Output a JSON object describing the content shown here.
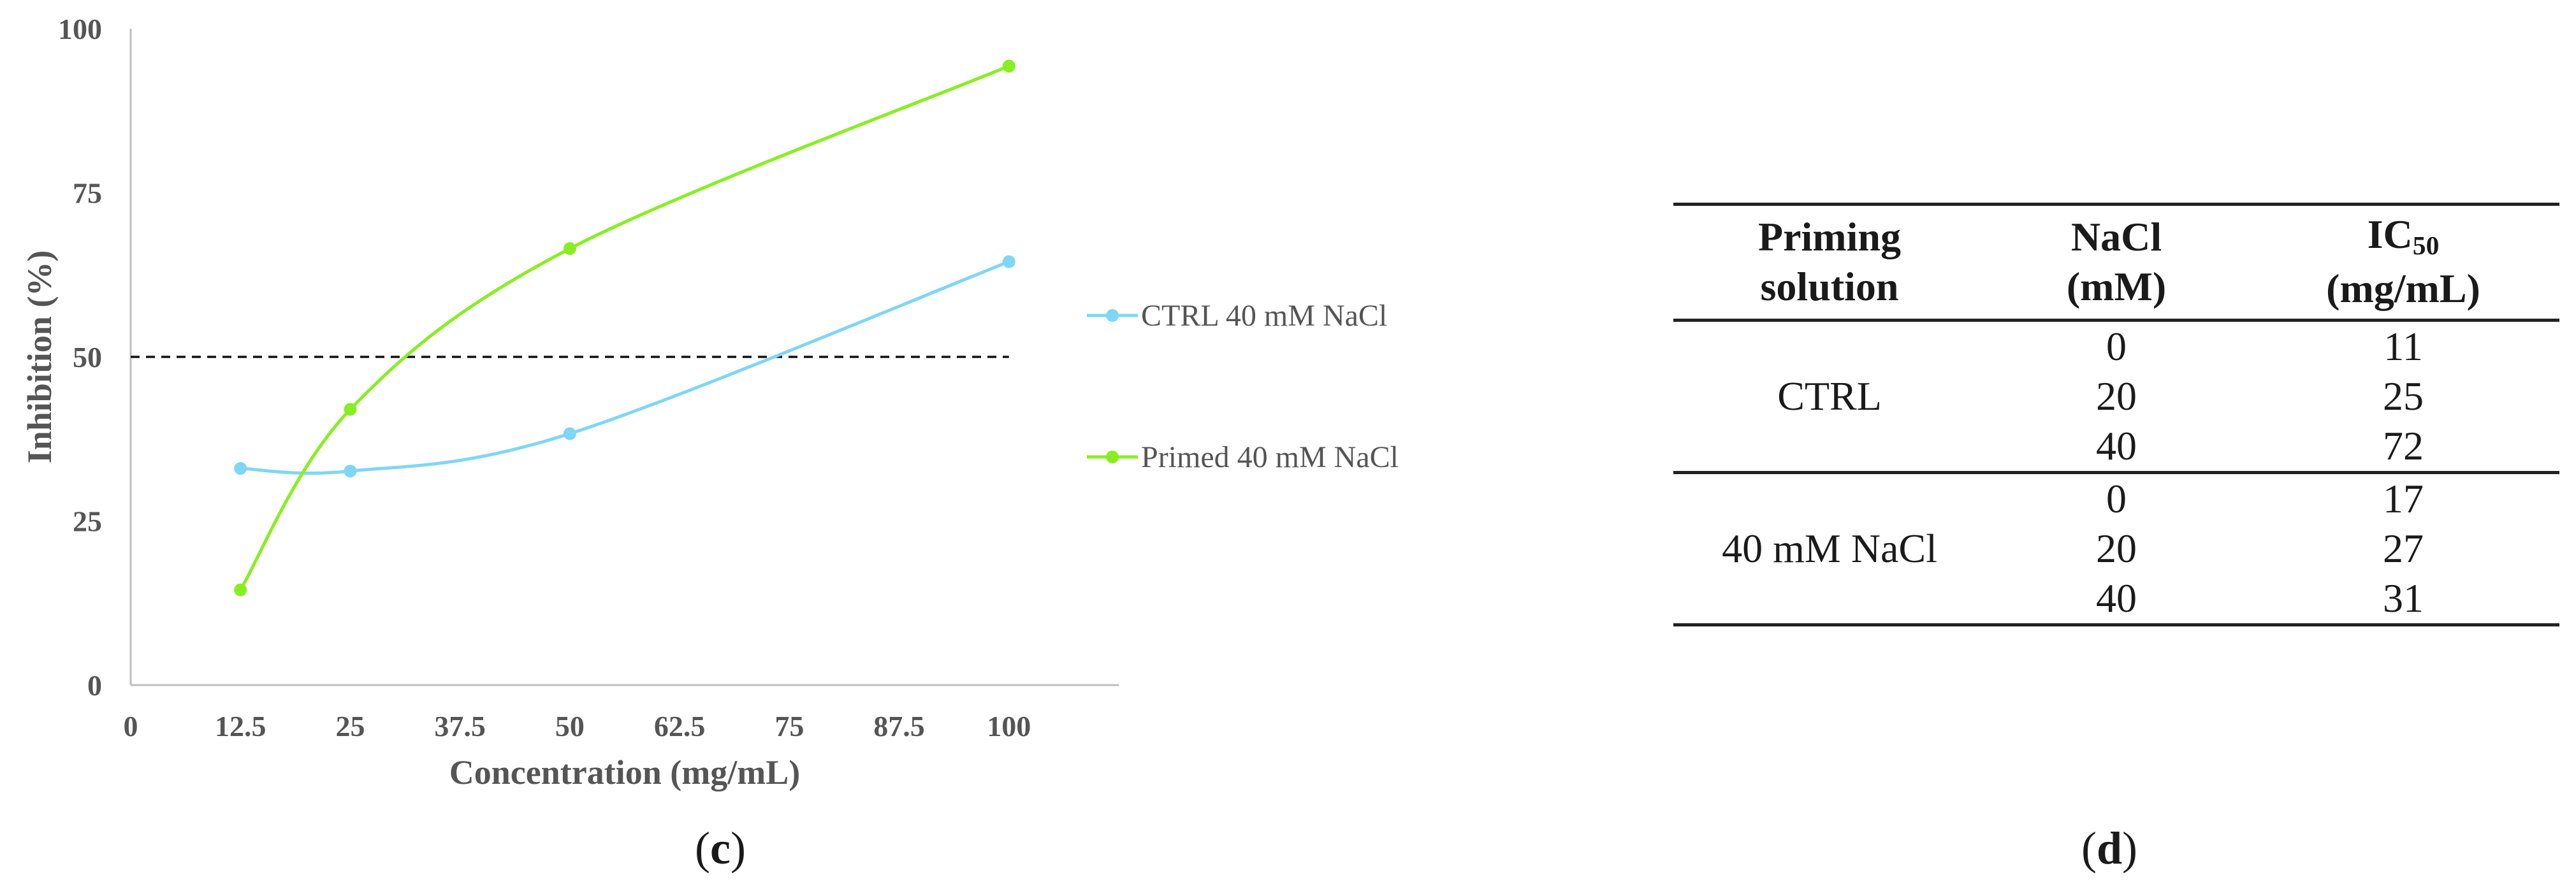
{
  "chart_data": [
    {
      "type": "line",
      "panel": "(c)",
      "xlabel": "Concentration (mg/mL)",
      "ylabel": "Inhibition (%)",
      "xlim": [
        0,
        112.5
      ],
      "ylim": [
        0,
        100
      ],
      "x_ticks": [
        0,
        12.5,
        25,
        37.5,
        50,
        62.5,
        75,
        87.5,
        100
      ],
      "x_tick_labels": [
        "0",
        "12.5",
        "25",
        "37.5",
        "50",
        "62.5",
        "75",
        "87.5",
        "100"
      ],
      "y_ticks": [
        0,
        25,
        50,
        75,
        100
      ],
      "y_tick_labels": [
        "0",
        "25",
        "50",
        "75",
        "100"
      ],
      "grid": false,
      "legend_position": "right",
      "reference_line": {
        "y": 50,
        "style": "dashed",
        "x_range": [
          0,
          100
        ]
      },
      "series": [
        {
          "name": "CTRL 40 mM NaCl",
          "color": "#7fd6f5",
          "x": [
            12.5,
            25,
            50,
            100
          ],
          "y": [
            33,
            32.6,
            38.3,
            64.5
          ]
        },
        {
          "name": "Primed 40 mM NaCl",
          "color": "#88ee22",
          "x": [
            12.5,
            25,
            50,
            100
          ],
          "y": [
            14.5,
            42,
            66.5,
            94.3
          ]
        }
      ]
    },
    {
      "type": "table",
      "panel": "(d)",
      "columns": [
        "Priming solution",
        "NaCl (mM)",
        "IC50 (mg/mL)"
      ],
      "groups": [
        {
          "name": "CTRL",
          "rows": [
            {
              "nacl": "0",
              "ic50": "11"
            },
            {
              "nacl": "20",
              "ic50": "25"
            },
            {
              "nacl": "40",
              "ic50": "72"
            }
          ]
        },
        {
          "name": "40 mM NaCl",
          "rows": [
            {
              "nacl": "0",
              "ic50": "17"
            },
            {
              "nacl": "20",
              "ic50": "27"
            },
            {
              "nacl": "40",
              "ic50": "31"
            }
          ]
        }
      ]
    }
  ],
  "table_header": {
    "col1_line1": "Priming",
    "col1_line2": "solution",
    "col2_line1": "NaCl",
    "col2_line2": "(mM)",
    "col3_main": "IC",
    "col3_sub": "50",
    "col3_line2": "(mg/mL)"
  },
  "panel_labels": {
    "c": {
      "open": "(",
      "letter": "c",
      "close": ")"
    },
    "d": {
      "open": "(",
      "letter": "d",
      "close": ")"
    }
  }
}
